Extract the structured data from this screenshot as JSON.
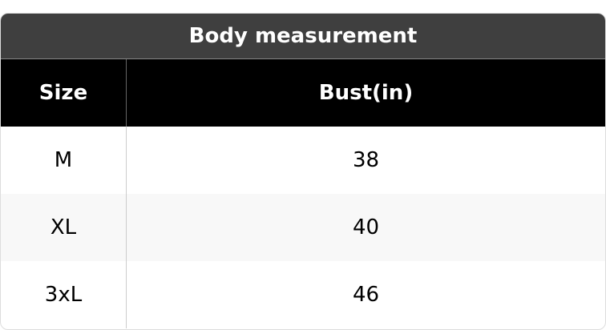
{
  "title": "Body measurement",
  "headers": [
    "Size",
    "Bust(in)"
  ],
  "rows": [
    [
      "M",
      "38"
    ],
    [
      "XL",
      "40"
    ],
    [
      "3xL",
      "46"
    ]
  ]
}
